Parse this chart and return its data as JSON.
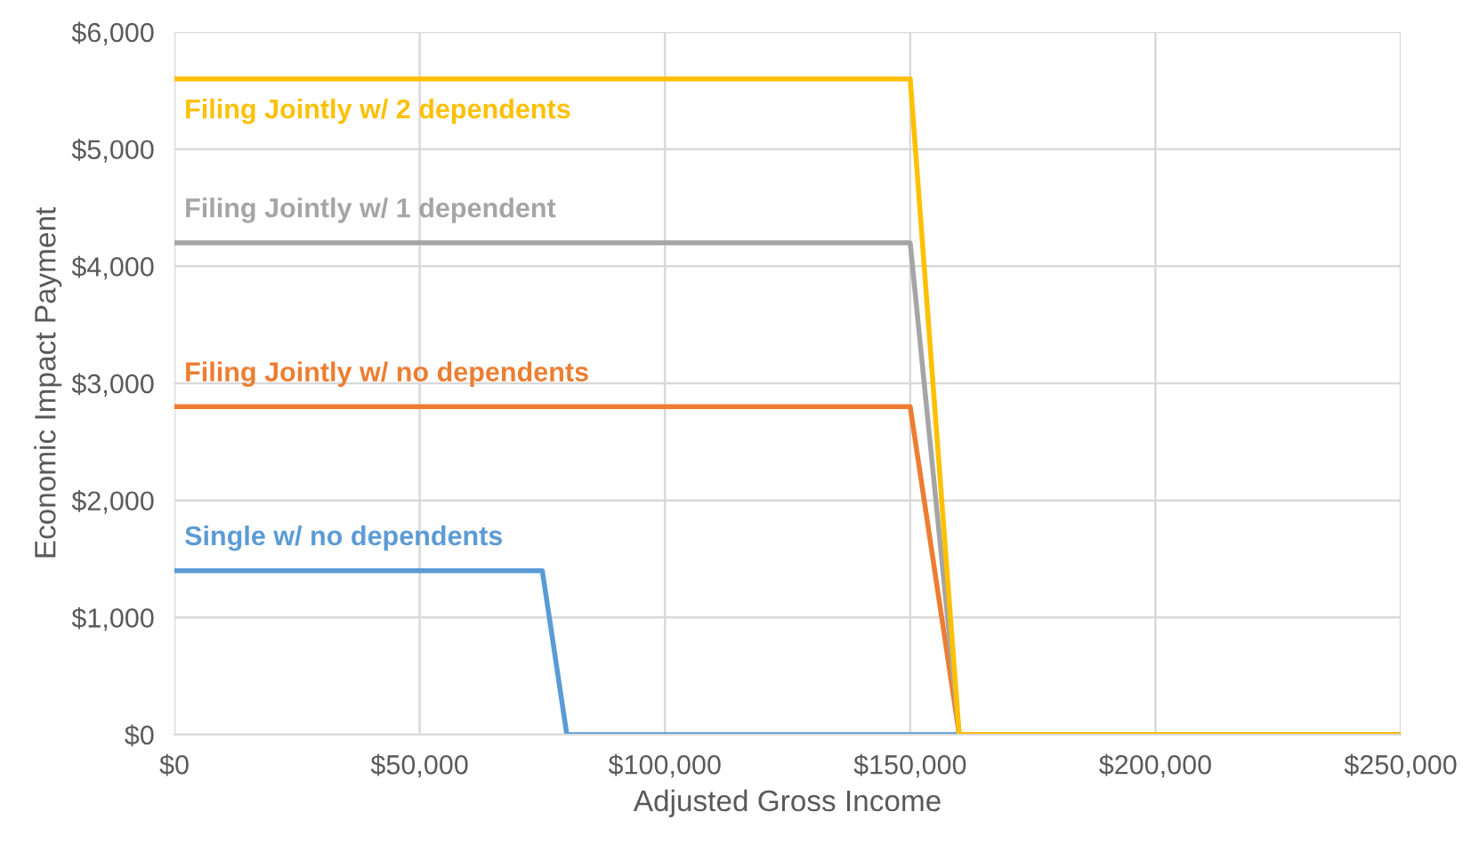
{
  "chart_data": {
    "type": "line",
    "xlabel": "Adjusted Gross Income",
    "ylabel": "Economic Impact Payment",
    "xlim": [
      0,
      250000
    ],
    "ylim": [
      0,
      6000
    ],
    "xticks": [
      {
        "value": 0,
        "label": "$0"
      },
      {
        "value": 50000,
        "label": "$50,000"
      },
      {
        "value": 100000,
        "label": "$100,000"
      },
      {
        "value": 150000,
        "label": "$150,000"
      },
      {
        "value": 200000,
        "label": "$200,000"
      },
      {
        "value": 250000,
        "label": "$250,000"
      }
    ],
    "yticks": [
      {
        "value": 0,
        "label": "$0"
      },
      {
        "value": 1000,
        "label": "$1,000"
      },
      {
        "value": 2000,
        "label": "$2,000"
      },
      {
        "value": 3000,
        "label": "$3,000"
      },
      {
        "value": 4000,
        "label": "$4,000"
      },
      {
        "value": 5000,
        "label": "$5,000"
      },
      {
        "value": 6000,
        "label": "$6,000"
      }
    ],
    "grid": true,
    "legend": false,
    "marker": "none",
    "line_style": "solid",
    "series": [
      {
        "name": "Single w/ no dependents",
        "color": "#5b9bd5",
        "x": [
          0,
          75000,
          80000,
          160000
        ],
        "values": [
          1400,
          1400,
          0,
          0
        ]
      },
      {
        "name": "Filing Jointly w/ no dependents",
        "color": "#ed7d31",
        "x": [
          0,
          150000,
          160000,
          250000
        ],
        "values": [
          2800,
          2800,
          0,
          0
        ]
      },
      {
        "name": "Filing Jointly w/ 1 dependent",
        "color": "#a5a5a5",
        "x": [
          0,
          150000,
          160000,
          250000
        ],
        "values": [
          4200,
          4200,
          0,
          0
        ]
      },
      {
        "name": "Filing Jointly w/ 2 dependents",
        "color": "#ffc000",
        "x": [
          0,
          150000,
          160000,
          250000
        ],
        "values": [
          5600,
          5600,
          0,
          0
        ]
      }
    ]
  }
}
